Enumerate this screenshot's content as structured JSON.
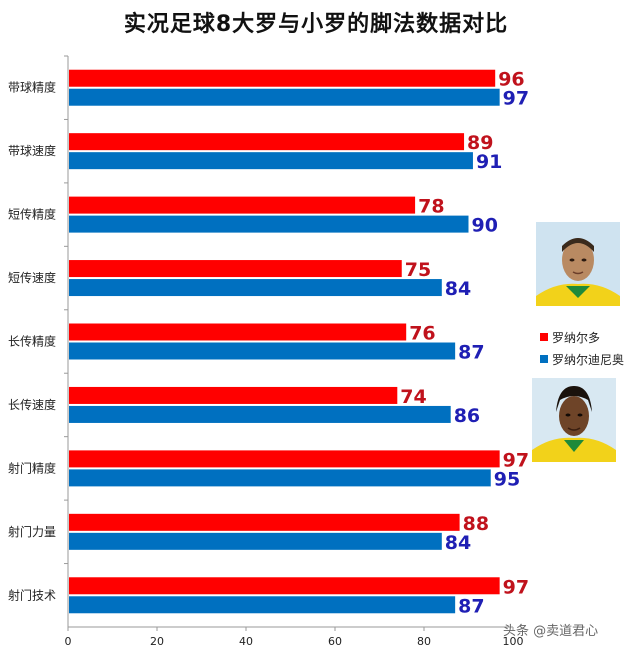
{
  "watermark": "头条 @卖道君心",
  "colors": {
    "red": "#ff0000",
    "blue": "#0070c0",
    "red_label": "#c0121c",
    "blue_label": "#1f1fb4"
  },
  "chart_data": {
    "type": "bar",
    "orientation": "horizontal",
    "title": "实况足球8大罗与小罗的脚法数据对比",
    "categories": [
      "带球精度",
      "带球速度",
      "短传精度",
      "短传速度",
      "长传精度",
      "长传速度",
      "射门精度",
      "射门力量",
      "射门技术"
    ],
    "series": [
      {
        "name": "罗纳尔多",
        "color": "#ff0000",
        "values": [
          96,
          89,
          78,
          75,
          76,
          74,
          97,
          88,
          97
        ]
      },
      {
        "name": "罗纳尔迪尼奥",
        "color": "#0070c0",
        "values": [
          97,
          91,
          90,
          84,
          87,
          86,
          95,
          84,
          87
        ]
      }
    ],
    "xlim": [
      0,
      100
    ],
    "xticks": [
      0,
      20,
      40,
      60,
      80,
      100
    ],
    "grid": false,
    "legend": "right"
  }
}
